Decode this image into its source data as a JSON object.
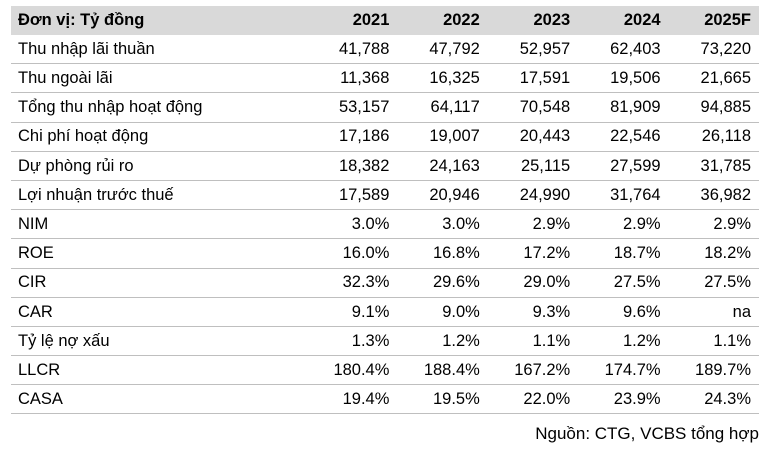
{
  "table": {
    "header": [
      "Đơn vị: Tỷ đồng",
      "2021",
      "2022",
      "2023",
      "2024",
      "2025F"
    ],
    "rows": [
      [
        "Thu nhập lãi thuần",
        "41,788",
        "47,792",
        "52,957",
        "62,403",
        "73,220"
      ],
      [
        "Thu ngoài lãi",
        "11,368",
        "16,325",
        "17,591",
        "19,506",
        "21,665"
      ],
      [
        "Tổng thu nhập hoạt động",
        "53,157",
        "64,117",
        "70,548",
        "81,909",
        "94,885"
      ],
      [
        "Chi phí hoạt động",
        "17,186",
        "19,007",
        "20,443",
        "22,546",
        "26,118"
      ],
      [
        "Dự phòng rủi ro",
        "18,382",
        "24,163",
        "25,115",
        "27,599",
        "31,785"
      ],
      [
        "Lợi nhuận trước thuế",
        "17,589",
        "20,946",
        "24,990",
        "31,764",
        "36,982"
      ],
      [
        "NIM",
        "3.0%",
        "3.0%",
        "2.9%",
        "2.9%",
        "2.9%"
      ],
      [
        "ROE",
        "16.0%",
        "16.8%",
        "17.2%",
        "18.7%",
        "18.2%"
      ],
      [
        "CIR",
        "32.3%",
        "29.6%",
        "29.0%",
        "27.5%",
        "27.5%"
      ],
      [
        "CAR",
        "9.1%",
        "9.0%",
        "9.3%",
        "9.6%",
        "na"
      ],
      [
        "Tỷ lệ nợ xấu",
        "1.3%",
        "1.2%",
        "1.1%",
        "1.2%",
        "1.1%"
      ],
      [
        "LLCR",
        "180.4%",
        "188.4%",
        "167.2%",
        "174.7%",
        "189.7%"
      ],
      [
        "CASA",
        "19.4%",
        "19.5%",
        "22.0%",
        "23.9%",
        "24.3%"
      ]
    ]
  },
  "source": "Nguồn: CTG, VCBS tổng hợp"
}
